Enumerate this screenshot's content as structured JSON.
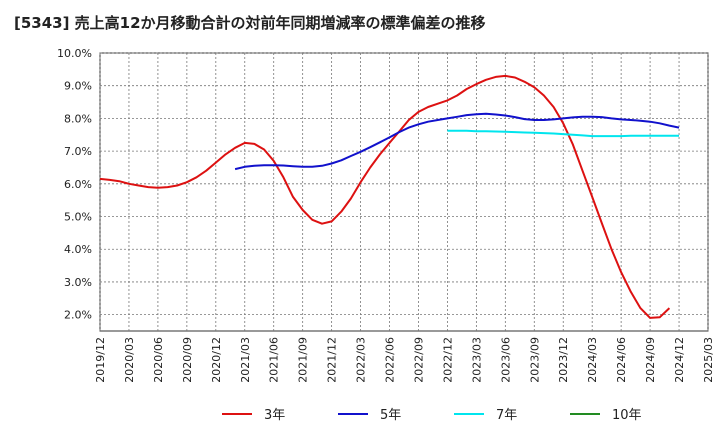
{
  "title": "[5343]  売上高12か月移動合計の対前年同期増減率の標準偏差の推移",
  "chart_data": {
    "type": "line",
    "title": "[5343]  売上高12か月移動合計の対前年同期増減率の標準偏差の推移",
    "xlabel": "",
    "ylabel": "",
    "x_ticks": [
      "2019/12",
      "2020/03",
      "2020/06",
      "2020/09",
      "2020/12",
      "2021/03",
      "2021/06",
      "2021/09",
      "2021/12",
      "2022/03",
      "2022/06",
      "2022/09",
      "2022/12",
      "2023/03",
      "2023/06",
      "2023/09",
      "2023/12",
      "2024/03",
      "2024/06",
      "2024/09",
      "2024/12",
      "2025/03"
    ],
    "x_range": [
      "2019/12",
      "2025/03"
    ],
    "y_ticks": [
      "2.0%",
      "3.0%",
      "4.0%",
      "5.0%",
      "6.0%",
      "7.0%",
      "8.0%",
      "9.0%",
      "10.0%"
    ],
    "ylim": [
      1.5,
      10.0
    ],
    "grid": true,
    "legend_position": "bottom",
    "series": [
      {
        "name": "3年",
        "color": "#dd1111",
        "points": [
          [
            "2019/12",
            6.15
          ],
          [
            "2020/01",
            6.12
          ],
          [
            "2020/02",
            6.08
          ],
          [
            "2020/03",
            6.0
          ],
          [
            "2020/04",
            5.95
          ],
          [
            "2020/05",
            5.9
          ],
          [
            "2020/06",
            5.88
          ],
          [
            "2020/07",
            5.9
          ],
          [
            "2020/08",
            5.95
          ],
          [
            "2020/09",
            6.05
          ],
          [
            "2020/10",
            6.2
          ],
          [
            "2020/11",
            6.4
          ],
          [
            "2020/12",
            6.65
          ],
          [
            "2021/01",
            6.9
          ],
          [
            "2021/02",
            7.1
          ],
          [
            "2021/03",
            7.25
          ],
          [
            "2021/04",
            7.22
          ],
          [
            "2021/05",
            7.05
          ],
          [
            "2021/06",
            6.7
          ],
          [
            "2021/07",
            6.2
          ],
          [
            "2021/08",
            5.6
          ],
          [
            "2021/09",
            5.2
          ],
          [
            "2021/10",
            4.9
          ],
          [
            "2021/11",
            4.78
          ],
          [
            "2021/12",
            4.85
          ],
          [
            "2022/01",
            5.15
          ],
          [
            "2022/02",
            5.55
          ],
          [
            "2022/03",
            6.05
          ],
          [
            "2022/04",
            6.5
          ],
          [
            "2022/05",
            6.9
          ],
          [
            "2022/06",
            7.25
          ],
          [
            "2022/07",
            7.6
          ],
          [
            "2022/08",
            7.95
          ],
          [
            "2022/09",
            8.2
          ],
          [
            "2022/10",
            8.35
          ],
          [
            "2022/11",
            8.45
          ],
          [
            "2022/12",
            8.55
          ],
          [
            "2023/01",
            8.7
          ],
          [
            "2023/02",
            8.9
          ],
          [
            "2023/03",
            9.05
          ],
          [
            "2023/04",
            9.18
          ],
          [
            "2023/05",
            9.27
          ],
          [
            "2023/06",
            9.3
          ],
          [
            "2023/07",
            9.25
          ],
          [
            "2023/08",
            9.12
          ],
          [
            "2023/09",
            8.95
          ],
          [
            "2023/10",
            8.7
          ],
          [
            "2023/11",
            8.35
          ],
          [
            "2023/12",
            7.85
          ],
          [
            "2024/01",
            7.2
          ],
          [
            "2024/02",
            6.4
          ],
          [
            "2024/03",
            5.6
          ],
          [
            "2024/04",
            4.8
          ],
          [
            "2024/05",
            4.0
          ],
          [
            "2024/06",
            3.3
          ],
          [
            "2024/07",
            2.7
          ],
          [
            "2024/08",
            2.2
          ],
          [
            "2024/09",
            1.9
          ],
          [
            "2024/10",
            1.92
          ],
          [
            "2024/11",
            2.2
          ]
        ]
      },
      {
        "name": "5年",
        "color": "#1111cc",
        "points": [
          [
            "2021/02",
            6.45
          ],
          [
            "2021/03",
            6.52
          ],
          [
            "2021/04",
            6.55
          ],
          [
            "2021/05",
            6.57
          ],
          [
            "2021/06",
            6.57
          ],
          [
            "2021/07",
            6.56
          ],
          [
            "2021/08",
            6.54
          ],
          [
            "2021/09",
            6.52
          ],
          [
            "2021/10",
            6.52
          ],
          [
            "2021/11",
            6.55
          ],
          [
            "2021/12",
            6.62
          ],
          [
            "2022/01",
            6.72
          ],
          [
            "2022/02",
            6.85
          ],
          [
            "2022/03",
            6.98
          ],
          [
            "2022/04",
            7.12
          ],
          [
            "2022/05",
            7.27
          ],
          [
            "2022/06",
            7.42
          ],
          [
            "2022/07",
            7.58
          ],
          [
            "2022/08",
            7.72
          ],
          [
            "2022/09",
            7.82
          ],
          [
            "2022/10",
            7.9
          ],
          [
            "2022/11",
            7.95
          ],
          [
            "2022/12",
            8.0
          ],
          [
            "2023/01",
            8.05
          ],
          [
            "2023/02",
            8.1
          ],
          [
            "2023/03",
            8.13
          ],
          [
            "2023/04",
            8.14
          ],
          [
            "2023/05",
            8.12
          ],
          [
            "2023/06",
            8.09
          ],
          [
            "2023/07",
            8.04
          ],
          [
            "2023/08",
            7.98
          ],
          [
            "2023/09",
            7.95
          ],
          [
            "2023/10",
            7.95
          ],
          [
            "2023/11",
            7.97
          ],
          [
            "2023/12",
            8.0
          ],
          [
            "2024/01",
            8.03
          ],
          [
            "2024/02",
            8.05
          ],
          [
            "2024/03",
            8.05
          ],
          [
            "2024/04",
            8.04
          ],
          [
            "2024/05",
            8.0
          ],
          [
            "2024/06",
            7.97
          ],
          [
            "2024/07",
            7.95
          ],
          [
            "2024/08",
            7.93
          ],
          [
            "2024/09",
            7.9
          ],
          [
            "2024/10",
            7.85
          ],
          [
            "2024/11",
            7.78
          ],
          [
            "2024/12",
            7.72
          ]
        ]
      },
      {
        "name": "7年",
        "color": "#00e5ee",
        "points": [
          [
            "2022/12",
            7.62
          ],
          [
            "2023/01",
            7.62
          ],
          [
            "2023/02",
            7.62
          ],
          [
            "2023/03",
            7.61
          ],
          [
            "2023/04",
            7.61
          ],
          [
            "2023/05",
            7.6
          ],
          [
            "2023/06",
            7.59
          ],
          [
            "2023/07",
            7.58
          ],
          [
            "2023/08",
            7.57
          ],
          [
            "2023/09",
            7.56
          ],
          [
            "2023/10",
            7.55
          ],
          [
            "2023/11",
            7.54
          ],
          [
            "2023/12",
            7.52
          ],
          [
            "2024/01",
            7.5
          ],
          [
            "2024/02",
            7.48
          ],
          [
            "2024/03",
            7.46
          ],
          [
            "2024/04",
            7.46
          ],
          [
            "2024/05",
            7.46
          ],
          [
            "2024/06",
            7.46
          ],
          [
            "2024/07",
            7.47
          ],
          [
            "2024/08",
            7.47
          ],
          [
            "2024/09",
            7.47
          ],
          [
            "2024/10",
            7.47
          ],
          [
            "2024/11",
            7.47
          ],
          [
            "2024/12",
            7.47
          ]
        ]
      },
      {
        "name": "10年",
        "color": "#228b22",
        "points": []
      }
    ]
  }
}
